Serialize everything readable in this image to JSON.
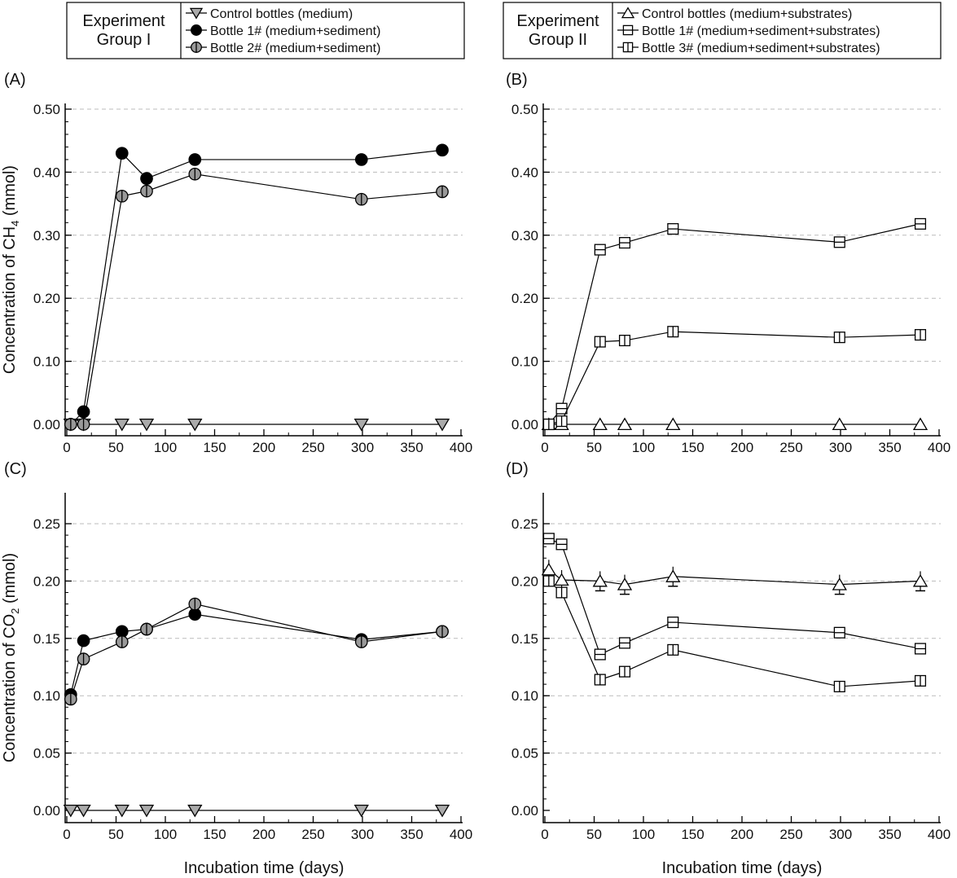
{
  "legends": [
    {
      "group_label": [
        "Experiment",
        "Group I"
      ],
      "entries": [
        {
          "label": "Control bottles (medium)",
          "marker": "triangle-down-gray"
        },
        {
          "label": "Bottle 1# (medium+sediment)",
          "marker": "circle-black"
        },
        {
          "label": "Bottle 2# (medium+sediment)",
          "marker": "circle-half"
        }
      ]
    },
    {
      "group_label": [
        "Experiment",
        "Group II"
      ],
      "entries": [
        {
          "label": "Control bottles (medium+substrates)",
          "marker": "triangle-up-open"
        },
        {
          "label": "Bottle 1# (medium+sediment+substrates)",
          "marker": "square-hline"
        },
        {
          "label": "Bottle 3# (medium+sediment+substrates)",
          "marker": "square-vline"
        }
      ]
    }
  ],
  "chart_data": [
    {
      "type": "line",
      "panel": "(A)",
      "xlabel": "",
      "ylabel": {
        "pre": "Concentration of CH",
        "sub": "4",
        "post": " (mmol)"
      },
      "xlim": [
        0,
        400
      ],
      "ylim": [
        0,
        0.5
      ],
      "xticks": [
        0,
        50,
        100,
        150,
        200,
        250,
        300,
        350,
        400
      ],
      "yticks": [
        "0.00",
        "0.10",
        "0.20",
        "0.30",
        "0.40",
        "0.50"
      ],
      "ystep": 0.1,
      "grid": "horizontal-dashed",
      "x": [
        4,
        17,
        56,
        81,
        130,
        299,
        381
      ],
      "series": [
        {
          "name": "Control bottles (medium)",
          "marker": "triangle-down-gray",
          "values": [
            0,
            0,
            0,
            0,
            0,
            0,
            0
          ]
        },
        {
          "name": "Bottle 1# (medium+sediment)",
          "marker": "circle-black",
          "values": [
            0,
            0.02,
            0.43,
            0.39,
            0.42,
            0.42,
            0.435
          ]
        },
        {
          "name": "Bottle 2# (medium+sediment)",
          "marker": "circle-half",
          "values": [
            0,
            0,
            0.362,
            0.37,
            0.397,
            0.357,
            0.369
          ]
        }
      ]
    },
    {
      "type": "line",
      "panel": "(B)",
      "xlabel": "",
      "ylabel": null,
      "xlim": [
        0,
        400
      ],
      "ylim": [
        0,
        0.5
      ],
      "xticks": [
        0,
        50,
        100,
        150,
        200,
        250,
        300,
        350,
        400
      ],
      "yticks": [
        "0.00",
        "0.10",
        "0.20",
        "0.30",
        "0.40",
        "0.50"
      ],
      "ystep": 0.1,
      "grid": "horizontal-dashed",
      "x": [
        4,
        17,
        56,
        81,
        130,
        299,
        381
      ],
      "series": [
        {
          "name": "Control bottles (medium+substrates)",
          "marker": "triangle-up-open",
          "values": [
            0,
            0,
            0,
            0,
            0,
            0,
            0
          ]
        },
        {
          "name": "Bottle 1# (medium+sediment+substrates)",
          "marker": "square-hline",
          "values": [
            0,
            0.025,
            0.277,
            0.288,
            0.31,
            0.289,
            0.318
          ]
        },
        {
          "name": "Bottle 3# (medium+sediment+substrates)",
          "marker": "square-vline",
          "values": [
            0,
            0.005,
            0.131,
            0.133,
            0.147,
            0.138,
            0.142
          ]
        }
      ]
    },
    {
      "type": "line",
      "panel": "(C)",
      "xlabel": "Incubation time (days)",
      "ylabel": {
        "pre": "Concentration of CO",
        "sub": "2",
        "post": " (mmol)"
      },
      "xlim": [
        0,
        400
      ],
      "ylim": [
        0,
        0.25
      ],
      "xticks": [
        0,
        50,
        100,
        150,
        200,
        250,
        300,
        350,
        400
      ],
      "yticks": [
        "0.00",
        "0.05",
        "0.10",
        "0.15",
        "0.20",
        "0.25"
      ],
      "ystep": 0.05,
      "grid": "horizontal-dashed",
      "x": [
        4,
        17,
        56,
        81,
        130,
        299,
        381
      ],
      "series": [
        {
          "name": "Control bottles (medium)",
          "marker": "triangle-down-gray",
          "values": [
            0,
            0,
            0,
            0,
            0,
            0,
            0
          ]
        },
        {
          "name": "Bottle 1# (medium+sediment)",
          "marker": "circle-black",
          "values": [
            0.101,
            0.148,
            0.156,
            0.158,
            0.171,
            0.149,
            0.156
          ]
        },
        {
          "name": "Bottle 2# (medium+sediment)",
          "marker": "circle-half",
          "values": [
            0.097,
            0.132,
            0.147,
            0.158,
            0.18,
            0.147,
            0.156
          ]
        }
      ]
    },
    {
      "type": "line",
      "panel": "(D)",
      "xlabel": "Incubation time (days)",
      "ylabel": null,
      "xlim": [
        0,
        400
      ],
      "ylim": [
        0,
        0.25
      ],
      "xticks": [
        0,
        50,
        100,
        150,
        200,
        250,
        300,
        350,
        400
      ],
      "yticks": [
        "0.00",
        "0.05",
        "0.10",
        "0.15",
        "0.20",
        "0.25"
      ],
      "ystep": 0.05,
      "grid": "horizontal-dashed",
      "x": [
        4,
        17,
        56,
        81,
        130,
        299,
        381
      ],
      "series": [
        {
          "name": "Control bottles (medium+substrates)",
          "marker": "triangle-up-open",
          "values": [
            0.21,
            0.201,
            0.2,
            0.197,
            0.204,
            0.197,
            0.2
          ]
        },
        {
          "name": "Bottle 1# (medium+sediment+substrates)",
          "marker": "square-hline",
          "values": [
            0.237,
            0.232,
            0.136,
            0.146,
            0.164,
            0.155,
            0.141
          ]
        },
        {
          "name": "Bottle 3# (medium+sediment+substrates)",
          "marker": "square-vline",
          "values": [
            0.2,
            0.19,
            0.114,
            0.121,
            0.14,
            0.108,
            0.113
          ]
        }
      ]
    }
  ]
}
